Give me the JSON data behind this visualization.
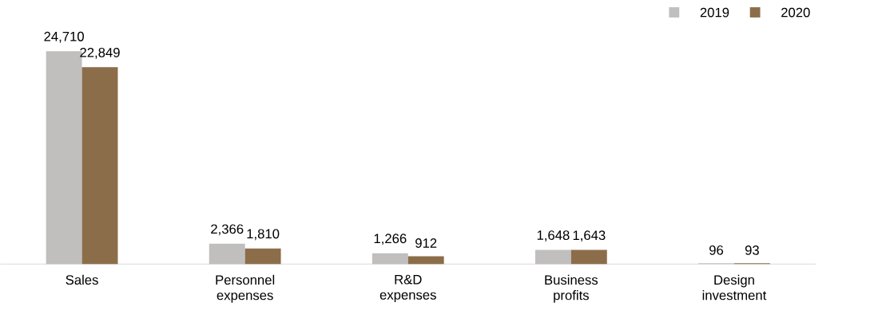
{
  "chart_data": {
    "type": "bar",
    "categories": [
      "Sales",
      "Personnel expenses",
      "R&D expenses",
      "Business profits",
      "Design investment"
    ],
    "series": [
      {
        "name": "2019",
        "color": "#c0bfbd",
        "values": [
          24710,
          2366,
          1266,
          1648,
          96
        ],
        "value_labels": [
          "24,710",
          "2,366",
          "1,266",
          "1,648",
          "96"
        ]
      },
      {
        "name": "2020",
        "color": "#8c6d4a",
        "values": [
          22849,
          1810,
          912,
          1643,
          93
        ],
        "value_labels": [
          "22,849",
          "1,810",
          "912",
          "1,643",
          "93"
        ]
      }
    ],
    "legend": "top right"
  }
}
